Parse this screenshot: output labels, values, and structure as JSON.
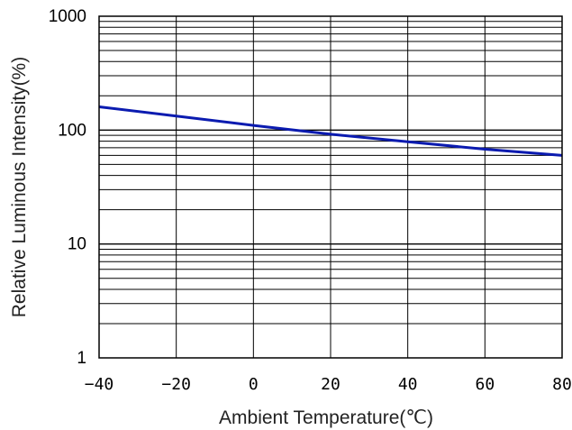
{
  "chart_data": {
    "type": "line",
    "xlabel": "Ambient Temperature(℃)",
    "ylabel": "Relative Luminous Intensity(%)",
    "x_ticks": [
      "−40",
      "−20",
      "0",
      "20",
      "40",
      "60",
      "80"
    ],
    "y_ticks": [
      "1",
      "10",
      "100",
      "1000"
    ],
    "xlim": [
      -40,
      80
    ],
    "ylim": [
      1,
      1000
    ],
    "y_scale": "log",
    "grid": true,
    "series": [
      {
        "color": "#0b1bb0",
        "x": [
          -40,
          -20,
          0,
          20,
          40,
          60,
          80
        ],
        "y": [
          160,
          133,
          110,
          92,
          79,
          68,
          60
        ]
      }
    ]
  }
}
